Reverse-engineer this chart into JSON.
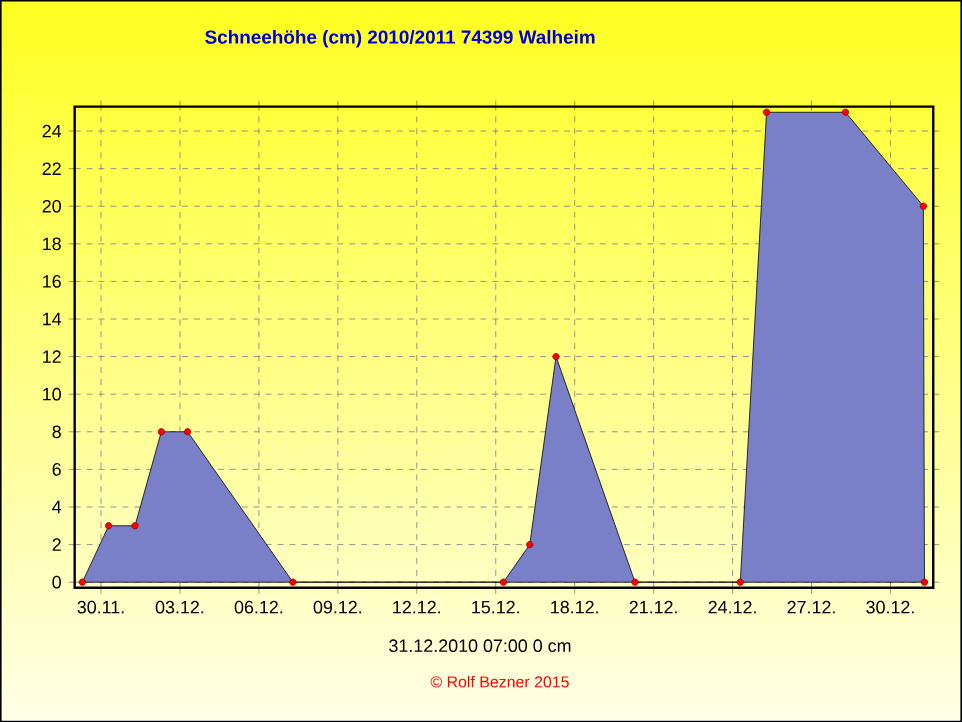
{
  "chart_data": {
    "type": "area",
    "title": "Schneehöhe (cm)  2010/2011      74399 Walheim",
    "annotations": [
      "31.12.2010  07:00    0 cm",
      "© Rolf Bezner 2015"
    ],
    "series": [
      {
        "color": "#7a80c8",
        "x": [
          "2010-11-29T07:00",
          "2010-11-30T07:00",
          "2010-12-01T07:00",
          "2010-12-02T07:00",
          "2010-12-03T07:00",
          "2010-12-07T07:00",
          "2010-12-15T07:00",
          "2010-12-16T07:00",
          "2010-12-17T07:00",
          "2010-12-20T07:00",
          "2010-12-24T07:00",
          "2010-12-25T07:00",
          "2010-12-28T07:00",
          "2010-12-31T06:00",
          "2010-12-31T07:00"
        ],
        "values": [
          0,
          3,
          3,
          8,
          8,
          0,
          0,
          2,
          12,
          0,
          0,
          25,
          25,
          20,
          0
        ]
      }
    ],
    "xlim": [
      "2010-11-29T00:00",
      "2010-12-31T15:00"
    ],
    "ylim": [
      -0.3,
      25.3
    ],
    "xticks": [
      {
        "value": "2010-11-30",
        "label": "30.11."
      },
      {
        "value": "2010-12-03",
        "label": "03.12."
      },
      {
        "value": "2010-12-06",
        "label": "06.12."
      },
      {
        "value": "2010-12-09",
        "label": "09.12."
      },
      {
        "value": "2010-12-12",
        "label": "12.12."
      },
      {
        "value": "2010-12-15",
        "label": "15.12."
      },
      {
        "value": "2010-12-18",
        "label": "18.12."
      },
      {
        "value": "2010-12-21",
        "label": "21.12."
      },
      {
        "value": "2010-12-24",
        "label": "24.12."
      },
      {
        "value": "2010-12-27",
        "label": "27.12."
      },
      {
        "value": "2010-12-30",
        "label": "30.12."
      }
    ],
    "yticks": [
      0,
      2,
      4,
      6,
      8,
      10,
      12,
      14,
      16,
      18,
      20,
      22,
      24
    ],
    "grid": true,
    "marker": "circle",
    "line_style": "solid"
  }
}
